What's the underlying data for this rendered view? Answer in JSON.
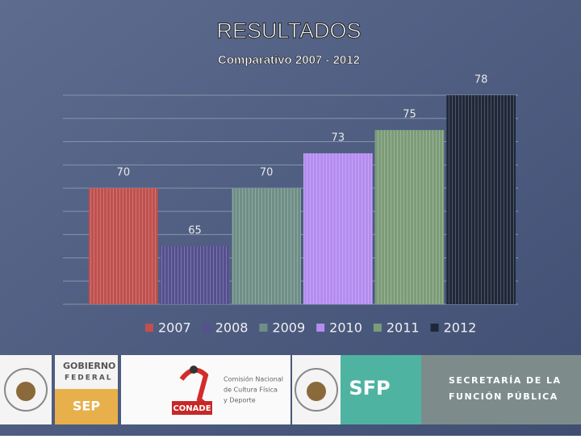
{
  "chart_data": {
    "type": "bar",
    "title": "RESULTADOS",
    "subtitle": "Comparativo 2007 - 2012",
    "categories": [
      null
    ],
    "series": [
      {
        "name": "2007",
        "color": "#c0504d",
        "values": [
          70
        ]
      },
      {
        "name": "2008",
        "color": "#55508f",
        "values": [
          65
        ]
      },
      {
        "name": "2009",
        "color": "#6f8f86",
        "values": [
          70
        ]
      },
      {
        "name": "2010",
        "color": "#b58cf0",
        "values": [
          73
        ]
      },
      {
        "name": "2011",
        "color": "#7c9c78",
        "values": [
          75
        ]
      },
      {
        "name": "2012",
        "color": "#1f2838",
        "values": [
          78
        ]
      }
    ],
    "ylim": [
      60,
      78
    ],
    "yticks": [
      60,
      62,
      64,
      66,
      68,
      70,
      72,
      74,
      76,
      78
    ],
    "grid": true,
    "legend": "bottom"
  },
  "footer": {
    "gobierno": "GOBIERNO",
    "federal": "FEDERAL",
    "sep": "SEP",
    "conade_name": [
      "Comisión Nacional",
      "de Cultura Física",
      "y Deporte"
    ],
    "conade": "CONADE",
    "sfp": "SFP",
    "secretaria": [
      "SECRETARÍA DE LA",
      "FUNCIÓN PÚBLICA"
    ]
  }
}
